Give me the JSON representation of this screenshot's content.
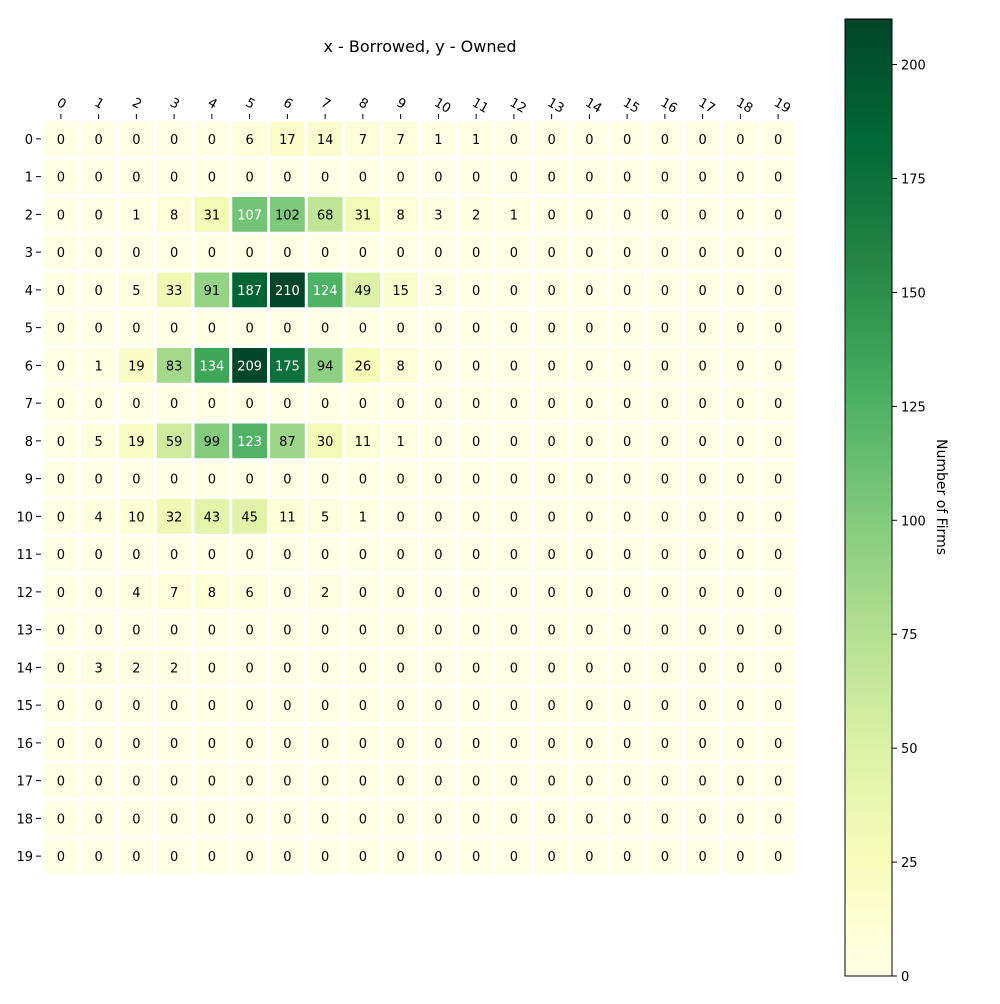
{
  "chart_data": {
    "type": "heatmap",
    "title": "x - Borrowed, y - Owned",
    "x_categories": [
      "0",
      "1",
      "2",
      "3",
      "4",
      "5",
      "6",
      "7",
      "8",
      "9",
      "10",
      "11",
      "12",
      "13",
      "14",
      "15",
      "16",
      "17",
      "18",
      "19"
    ],
    "y_categories": [
      "0",
      "1",
      "2",
      "3",
      "4",
      "5",
      "6",
      "7",
      "8",
      "9",
      "10",
      "11",
      "12",
      "13",
      "14",
      "15",
      "16",
      "17",
      "18",
      "19"
    ],
    "values": [
      [
        0,
        0,
        0,
        0,
        0,
        6,
        17,
        14,
        7,
        7,
        1,
        1,
        0,
        0,
        0,
        0,
        0,
        0,
        0,
        0
      ],
      [
        0,
        0,
        0,
        0,
        0,
        0,
        0,
        0,
        0,
        0,
        0,
        0,
        0,
        0,
        0,
        0,
        0,
        0,
        0,
        0
      ],
      [
        0,
        0,
        1,
        8,
        31,
        107,
        102,
        68,
        31,
        8,
        3,
        2,
        1,
        0,
        0,
        0,
        0,
        0,
        0,
        0
      ],
      [
        0,
        0,
        0,
        0,
        0,
        0,
        0,
        0,
        0,
        0,
        0,
        0,
        0,
        0,
        0,
        0,
        0,
        0,
        0,
        0
      ],
      [
        0,
        0,
        5,
        33,
        91,
        187,
        210,
        124,
        49,
        15,
        3,
        0,
        0,
        0,
        0,
        0,
        0,
        0,
        0,
        0
      ],
      [
        0,
        0,
        0,
        0,
        0,
        0,
        0,
        0,
        0,
        0,
        0,
        0,
        0,
        0,
        0,
        0,
        0,
        0,
        0,
        0
      ],
      [
        0,
        1,
        19,
        83,
        134,
        209,
        175,
        94,
        26,
        8,
        0,
        0,
        0,
        0,
        0,
        0,
        0,
        0,
        0,
        0
      ],
      [
        0,
        0,
        0,
        0,
        0,
        0,
        0,
        0,
        0,
        0,
        0,
        0,
        0,
        0,
        0,
        0,
        0,
        0,
        0,
        0
      ],
      [
        0,
        5,
        19,
        59,
        99,
        123,
        87,
        30,
        11,
        1,
        0,
        0,
        0,
        0,
        0,
        0,
        0,
        0,
        0,
        0
      ],
      [
        0,
        0,
        0,
        0,
        0,
        0,
        0,
        0,
        0,
        0,
        0,
        0,
        0,
        0,
        0,
        0,
        0,
        0,
        0,
        0
      ],
      [
        0,
        4,
        10,
        32,
        43,
        45,
        11,
        5,
        1,
        0,
        0,
        0,
        0,
        0,
        0,
        0,
        0,
        0,
        0,
        0
      ],
      [
        0,
        0,
        0,
        0,
        0,
        0,
        0,
        0,
        0,
        0,
        0,
        0,
        0,
        0,
        0,
        0,
        0,
        0,
        0,
        0
      ],
      [
        0,
        0,
        4,
        7,
        8,
        6,
        0,
        2,
        0,
        0,
        0,
        0,
        0,
        0,
        0,
        0,
        0,
        0,
        0,
        0
      ],
      [
        0,
        0,
        0,
        0,
        0,
        0,
        0,
        0,
        0,
        0,
        0,
        0,
        0,
        0,
        0,
        0,
        0,
        0,
        0,
        0
      ],
      [
        0,
        3,
        2,
        2,
        0,
        0,
        0,
        0,
        0,
        0,
        0,
        0,
        0,
        0,
        0,
        0,
        0,
        0,
        0,
        0
      ],
      [
        0,
        0,
        0,
        0,
        0,
        0,
        0,
        0,
        0,
        0,
        0,
        0,
        0,
        0,
        0,
        0,
        0,
        0,
        0,
        0
      ],
      [
        0,
        0,
        0,
        0,
        0,
        0,
        0,
        0,
        0,
        0,
        0,
        0,
        0,
        0,
        0,
        0,
        0,
        0,
        0,
        0
      ],
      [
        0,
        0,
        0,
        0,
        0,
        0,
        0,
        0,
        0,
        0,
        0,
        0,
        0,
        0,
        0,
        0,
        0,
        0,
        0,
        0
      ],
      [
        0,
        0,
        0,
        0,
        0,
        0,
        0,
        0,
        0,
        0,
        0,
        0,
        0,
        0,
        0,
        0,
        0,
        0,
        0,
        0
      ],
      [
        0,
        0,
        0,
        0,
        0,
        0,
        0,
        0,
        0,
        0,
        0,
        0,
        0,
        0,
        0,
        0,
        0,
        0,
        0,
        0
      ]
    ],
    "colorbar": {
      "label": "Number of Firms",
      "range": [
        0,
        210
      ],
      "ticks": [
        0,
        25,
        50,
        75,
        100,
        125,
        150,
        175,
        200
      ]
    },
    "colormap": "YlGn",
    "x_axis_position": "top",
    "grid": false,
    "legend": "colorbar-right"
  }
}
